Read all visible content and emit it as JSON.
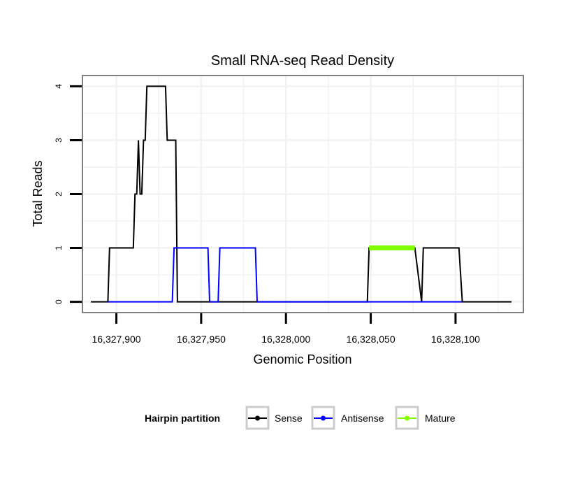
{
  "chart_data": {
    "type": "line",
    "title": "Small RNA-seq Read Density",
    "xlabel": "Genomic Position",
    "ylabel": "Total Reads",
    "xlim": [
      16327880,
      16328140
    ],
    "ylim": [
      -0.2,
      4.2
    ],
    "grid": true,
    "x_ticks": [
      16327900,
      16327950,
      16328000,
      16328050,
      16328100
    ],
    "x_tick_labels": [
      "16,327,900",
      "16,327,950",
      "16,328,000",
      "16,328,050",
      "16,328,100"
    ],
    "y_ticks": [
      0,
      1,
      2,
      3,
      4
    ],
    "y_tick_labels": [
      "0",
      "1",
      "2",
      "3",
      "4"
    ],
    "legend": {
      "title": "Hairpin partition",
      "position": "bottom",
      "entries": [
        "Sense",
        "Antisense",
        "Mature"
      ]
    },
    "series": [
      {
        "name": "Sense",
        "color": "#000000",
        "x": [
          16327885,
          16327895,
          16327896,
          16327910,
          16327911,
          16327912,
          16327913,
          16327914,
          16327915,
          16327916,
          16327917,
          16327918,
          16327929,
          16327930,
          16327935,
          16327936,
          16328048,
          16328049,
          16328076,
          16328080,
          16328081,
          16328102,
          16328104,
          16328133
        ],
        "y": [
          0,
          0,
          1,
          1,
          2,
          2,
          3,
          2,
          2,
          3,
          3,
          4,
          4,
          3,
          3,
          0,
          0,
          1,
          1,
          0,
          1,
          1,
          0,
          0
        ]
      },
      {
        "name": "Antisense",
        "color": "#0000ff",
        "x": [
          16327895,
          16327933,
          16327934,
          16327954,
          16327955,
          16327960,
          16327961,
          16327982,
          16327983,
          16328076,
          16328104
        ],
        "y": [
          0,
          0,
          1,
          1,
          0,
          0,
          1,
          1,
          0,
          0,
          0
        ]
      },
      {
        "name": "Mature",
        "color": "#7fff00",
        "x": [
          16328049,
          16328076
        ],
        "y": [
          1,
          1
        ]
      }
    ]
  }
}
